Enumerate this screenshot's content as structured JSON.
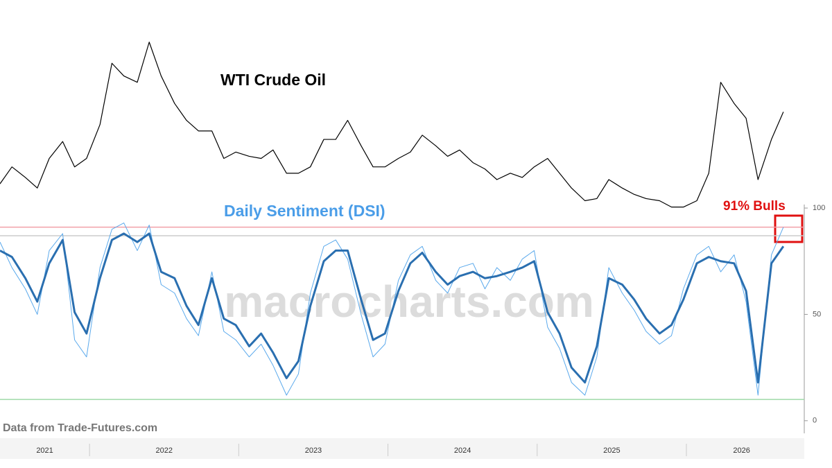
{
  "chart_data": [
    {
      "type": "line",
      "title": "WTI Crude Oil",
      "color": "#000000",
      "ylim": [
        0,
        100
      ],
      "x": [
        2021.4,
        2021.48,
        2021.57,
        2021.65,
        2021.73,
        2021.82,
        2021.9,
        2021.98,
        2022.07,
        2022.15,
        2022.23,
        2022.32,
        2022.4,
        2022.48,
        2022.57,
        2022.65,
        2022.73,
        2022.82,
        2022.9,
        2022.98,
        2023.07,
        2023.15,
        2023.23,
        2023.32,
        2023.4,
        2023.48,
        2023.57,
        2023.65,
        2023.73,
        2023.82,
        2023.9,
        2023.98,
        2024.07,
        2024.15,
        2024.23,
        2024.32,
        2024.4,
        2024.48,
        2024.57,
        2024.65,
        2024.73,
        2024.82,
        2024.9,
        2024.98,
        2025.07,
        2025.15,
        2025.23,
        2025.32,
        2025.4,
        2025.48,
        2025.57,
        2025.65,
        2025.73,
        2025.82,
        2025.9,
        2025.98,
        2026.07,
        2026.15,
        2026.23,
        2026.32,
        2026.4,
        2026.48,
        2026.57,
        2026.65
      ],
      "xlim": [
        2021.4,
        2026.79
      ],
      "values": [
        18,
        26,
        21,
        16,
        30,
        38,
        26,
        30,
        46,
        75,
        69,
        66,
        85,
        69,
        56,
        48,
        43,
        43,
        30,
        33,
        31,
        30,
        34,
        23,
        23,
        26,
        39,
        39,
        48,
        36,
        26,
        26,
        30,
        33,
        41,
        36,
        31,
        34,
        28,
        25,
        20,
        23,
        21,
        26,
        30,
        23,
        16,
        10,
        11,
        20,
        16,
        13,
        11,
        10,
        7,
        7,
        10,
        23,
        66,
        56,
        49,
        20,
        39,
        52
      ]
    },
    {
      "type": "line",
      "title": "Daily Sentiment (DSI)",
      "annotation": "91% Bulls",
      "watermark": "macrocharts.com",
      "source": "Data from Trade-Futures.com",
      "x": [
        2021.4,
        2021.48,
        2021.57,
        2021.65,
        2021.73,
        2021.82,
        2021.9,
        2021.98,
        2022.07,
        2022.15,
        2022.23,
        2022.32,
        2022.4,
        2022.48,
        2022.57,
        2022.65,
        2022.73,
        2022.82,
        2022.9,
        2022.98,
        2023.07,
        2023.15,
        2023.23,
        2023.32,
        2023.4,
        2023.48,
        2023.57,
        2023.65,
        2023.73,
        2023.82,
        2023.9,
        2023.98,
        2024.07,
        2024.15,
        2024.23,
        2024.32,
        2024.4,
        2024.48,
        2024.57,
        2024.65,
        2024.73,
        2024.82,
        2024.9,
        2024.98,
        2025.07,
        2025.15,
        2025.23,
        2025.32,
        2025.4,
        2025.48,
        2025.57,
        2025.65,
        2025.73,
        2025.82,
        2025.9,
        2025.98,
        2026.07,
        2026.15,
        2026.23,
        2026.32,
        2026.4,
        2026.48,
        2026.57,
        2026.65
      ],
      "xlim": [
        2021.4,
        2026.79
      ],
      "xticks": [
        {
          "value": 2021.7,
          "label": "2021"
        },
        {
          "value": 2022.5,
          "label": "2022"
        },
        {
          "value": 2023.5,
          "label": "2023"
        },
        {
          "value": 2024.5,
          "label": "2024"
        },
        {
          "value": 2025.5,
          "label": "2025"
        },
        {
          "value": 2026.37,
          "label": "2026"
        }
      ],
      "year_separators": [
        2022,
        2023,
        2024,
        2025,
        2026
      ],
      "ylim": [
        -3,
        101
      ],
      "yticks": [
        0,
        50,
        100
      ],
      "hlines": [
        {
          "value": 91,
          "color": "#f2a0a8"
        },
        {
          "value": 87,
          "color": "#cccccc"
        },
        {
          "value": 10,
          "color": "#9fd9a8"
        }
      ],
      "series": [
        {
          "color": "#5aa9ec",
          "width": 1,
          "values": [
            84,
            72,
            62,
            50,
            80,
            88,
            38,
            30,
            72,
            90,
            93,
            80,
            92,
            64,
            60,
            48,
            40,
            70,
            42,
            38,
            30,
            36,
            26,
            12,
            22,
            60,
            82,
            85,
            76,
            50,
            30,
            36,
            66,
            78,
            82,
            66,
            60,
            72,
            74,
            62,
            72,
            66,
            76,
            80,
            44,
            34,
            18,
            12,
            30,
            72,
            60,
            52,
            42,
            36,
            40,
            62,
            78,
            82,
            70,
            78,
            56,
            12,
            78,
            91
          ]
        },
        {
          "color": "#2a6fb0",
          "width": 3,
          "values": [
            80,
            77,
            67,
            56,
            74,
            85,
            51,
            41,
            67,
            85,
            88,
            84,
            88,
            70,
            67,
            54,
            45,
            67,
            48,
            45,
            35,
            41,
            32,
            20,
            28,
            54,
            75,
            80,
            80,
            57,
            38,
            41,
            61,
            74,
            79,
            70,
            64,
            68,
            70,
            67,
            68,
            70,
            72,
            75,
            51,
            41,
            25,
            18,
            35,
            67,
            64,
            57,
            48,
            41,
            45,
            57,
            74,
            77,
            75,
            74,
            61,
            18,
            74,
            82
          ]
        }
      ]
    }
  ]
}
